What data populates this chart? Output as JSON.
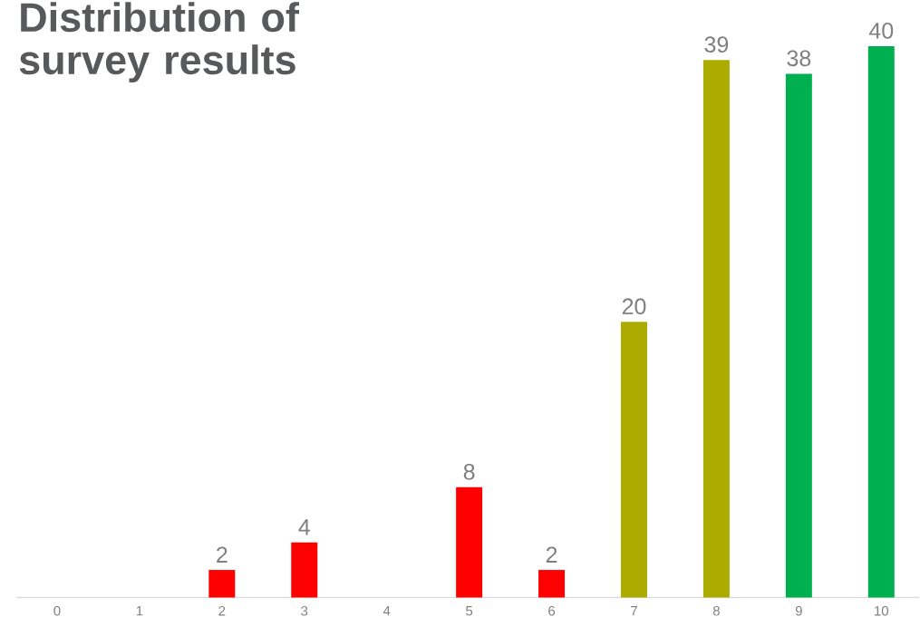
{
  "chart_data": {
    "type": "bar",
    "title": "Distribution of survey results",
    "categories": [
      "0",
      "1",
      "2",
      "3",
      "4",
      "5",
      "6",
      "7",
      "8",
      "9",
      "10"
    ],
    "values": [
      0,
      0,
      2,
      4,
      0,
      8,
      2,
      20,
      39,
      38,
      40
    ],
    "colors": [
      "#ff0000",
      "#ff0000",
      "#ff0000",
      "#ff0000",
      "#ff0000",
      "#ff0000",
      "#ff0000",
      "#acac00",
      "#acac00",
      "#00b050",
      "#00b050"
    ],
    "value_labels": [
      null,
      null,
      "2",
      "4",
      null,
      "8",
      "2",
      "20",
      "39",
      "38",
      "40"
    ]
  }
}
